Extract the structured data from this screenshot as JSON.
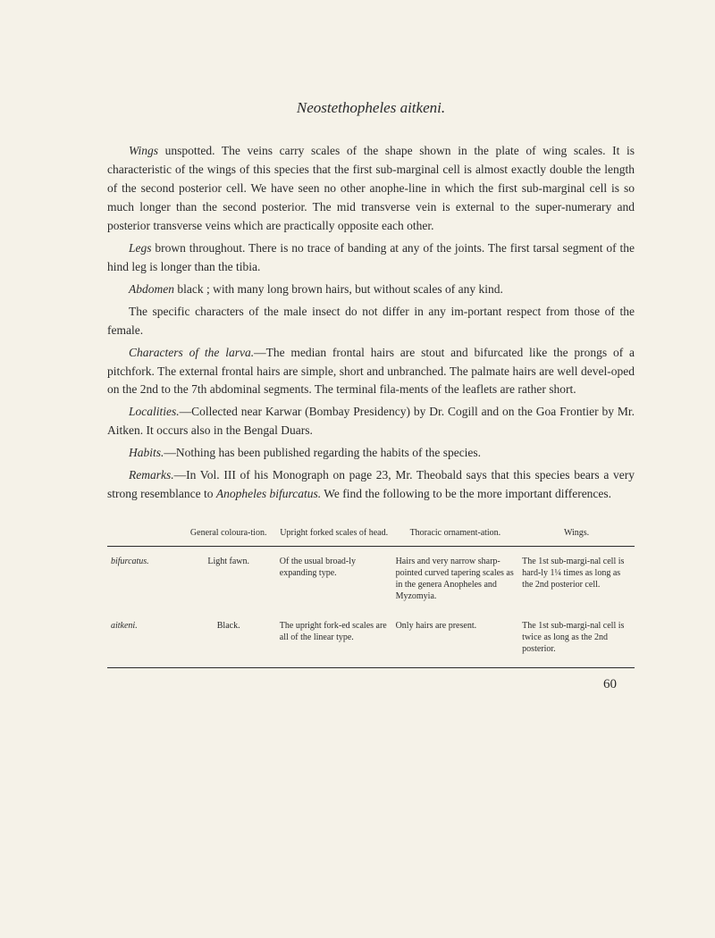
{
  "title": "Neostethopheles aitkeni.",
  "paragraphs": [
    "<span class='italic'>Wings</span> unspotted. The veins carry scales of the shape shown in the plate of wing scales. It is characteristic of the wings of this species that the first sub-marginal cell is almost exactly double the length of the second posterior cell. We have seen no other anophe-line in which the first sub-marginal cell is so much longer than the second posterior. The mid transverse vein is external to the super-numerary and posterior transverse veins which are practically opposite each other.",
    "<span class='italic'>Legs</span> brown throughout. There is no trace of banding at any of the joints. The first tarsal segment of the hind leg is longer than the tibia.",
    "<span class='italic'>Abdomen</span> black ; with many long brown hairs, but without scales of any kind.",
    "The specific characters of the male insect do not differ in any im-portant respect from those of the female.",
    "<span class='italic'>Characters of the larva.</span>—The median frontal hairs are stout and bifurcated like the prongs of a pitchfork. The external frontal hairs are simple, short and unbranched. The palmate hairs are well devel-oped on the 2nd to the 7th abdominal segments. The terminal fila-ments of the leaflets are rather short.",
    "<span class='italic'>Localities.</span>—Collected near Karwar (Bombay Presidency) by Dr. Cogill and on the Goa Frontier by Mr. Aitken. It occurs also in the Bengal Duars.",
    "<span class='italic'>Habits.</span>—Nothing has been published regarding the habits of the species.",
    "<span class='italic'>Remarks.</span>—In Vol. III of his Monograph on page 23, Mr. Theobald says that this species bears a very strong resemblance to <span class='italic'>Anopheles bifurcatus.</span> We find the following to be the more important differences."
  ],
  "table": {
    "headers": [
      "",
      "General coloura-tion.",
      "Upright forked scales of head.",
      "Thoracic ornament-ation.",
      "Wings."
    ],
    "rows": [
      {
        "species": "bifurcatus.",
        "cells": [
          "Light fawn.",
          "Of the usual broad-ly expanding type.",
          "Hairs and very narrow sharp-pointed curved tapering scales as in the genera <span class='italic'>Anopheles</span> and <span class='italic'>Myzomyia.</span>",
          "The 1st sub-margi-nal cell is hard-ly 1¼ times as long as the 2nd posterior cell."
        ]
      },
      {
        "species": "aitkeni.",
        "cells": [
          "Black.",
          "The upright fork-ed scales are all of the linear type.",
          "Only hairs are present.",
          "The 1st sub-margi-nal cell is twice as long as the 2nd posterior."
        ]
      }
    ]
  },
  "pageNumber": "60"
}
